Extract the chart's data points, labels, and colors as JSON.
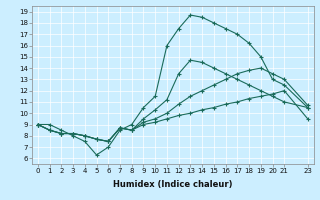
{
  "xlabel": "Humidex (Indice chaleur)",
  "bg_color": "#cceeff",
  "grid_color": "#ffffff",
  "line_color": "#1a6b5a",
  "xlim": [
    -0.5,
    23.5
  ],
  "ylim": [
    5.5,
    19.5
  ],
  "xticks": [
    0,
    1,
    2,
    3,
    4,
    5,
    6,
    7,
    8,
    9,
    10,
    11,
    12,
    13,
    14,
    15,
    16,
    17,
    18,
    19,
    20,
    21,
    23
  ],
  "yticks": [
    6,
    7,
    8,
    9,
    10,
    11,
    12,
    13,
    14,
    15,
    16,
    17,
    18,
    19
  ],
  "series": [
    [
      9.0,
      9.0,
      8.5,
      8.0,
      7.5,
      6.3,
      7.0,
      8.5,
      9.0,
      10.5,
      11.5,
      16.0,
      17.5,
      18.7,
      18.5,
      18.0,
      17.5,
      17.0,
      16.2,
      15.0,
      13.0,
      12.5,
      10.5
    ],
    [
      9.0,
      8.5,
      8.2,
      8.2,
      8.0,
      7.7,
      7.5,
      8.7,
      8.5,
      9.5,
      10.3,
      11.2,
      13.5,
      14.7,
      14.5,
      14.0,
      13.5,
      13.0,
      12.5,
      12.0,
      11.5,
      11.0,
      10.5
    ],
    [
      9.0,
      8.5,
      8.2,
      8.2,
      8.0,
      7.7,
      7.5,
      8.7,
      8.5,
      9.2,
      9.5,
      10.0,
      10.8,
      11.5,
      12.0,
      12.5,
      13.0,
      13.5,
      13.8,
      14.0,
      13.5,
      13.0,
      10.7
    ],
    [
      9.0,
      8.5,
      8.2,
      8.2,
      8.0,
      7.7,
      7.5,
      8.7,
      8.5,
      9.0,
      9.2,
      9.5,
      9.8,
      10.0,
      10.3,
      10.5,
      10.8,
      11.0,
      11.3,
      11.5,
      11.7,
      12.0,
      9.5
    ]
  ],
  "x_values": [
    0,
    1,
    2,
    3,
    4,
    5,
    6,
    7,
    8,
    9,
    10,
    11,
    12,
    13,
    14,
    15,
    16,
    17,
    18,
    19,
    20,
    21,
    23
  ],
  "tick_fontsize": 5.0,
  "xlabel_fontsize": 6.0,
  "linewidth": 0.8,
  "markersize": 3.0
}
